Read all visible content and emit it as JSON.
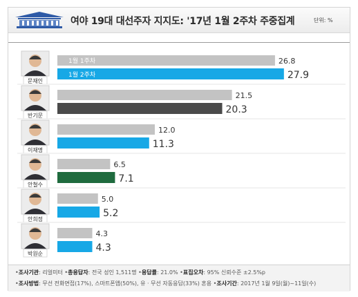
{
  "title": "여야 19대 대선주자 지지도: '17년 1월 2주차 주중집계",
  "unit": "단위: %",
  "colors": {
    "prev": "#c3c3c3",
    "default": "#17a8e6",
    "ban": "#4a4a4a",
    "ahn": "#1f6b3e",
    "value_text": "#333333",
    "inbar_text": "#ffffff"
  },
  "chart_data": {
    "type": "bar",
    "orientation": "horizontal",
    "title": "여야 19대 대선주자 지지도: '17년 1월 2주차 주중집계",
    "unit": "%",
    "categories": [
      "문재인",
      "반기문",
      "이재명",
      "안철수",
      "안희정",
      "박원순"
    ],
    "series": [
      {
        "name": "1월 1주차",
        "values": [
          26.8,
          21.5,
          12.0,
          6.5,
          5.0,
          4.3
        ]
      },
      {
        "name": "1월 2주차",
        "values": [
          27.9,
          20.3,
          11.3,
          7.1,
          5.2,
          4.3
        ]
      }
    ],
    "legend": "inside-bars",
    "grid": false
  },
  "footer": {
    "line1": [
      {
        "label": "조사기관",
        "text": "리얼미터"
      },
      {
        "label": "총응답자",
        "text": "전국 성인 1,511명"
      },
      {
        "label": "응답률",
        "text": "21.0%"
      },
      {
        "label": "표집오차",
        "text": "95% 신뢰수준 ±2.5%p"
      }
    ],
    "line2": [
      {
        "label": "조사방법",
        "text": "무선 전화면접(17%), 스마트폰앱(50%), 유 · 무선 자동응답(33%) 혼용"
      },
      {
        "label": "조사기간",
        "text": "2017년 1월 9일(월)~11일(수)"
      }
    ]
  }
}
